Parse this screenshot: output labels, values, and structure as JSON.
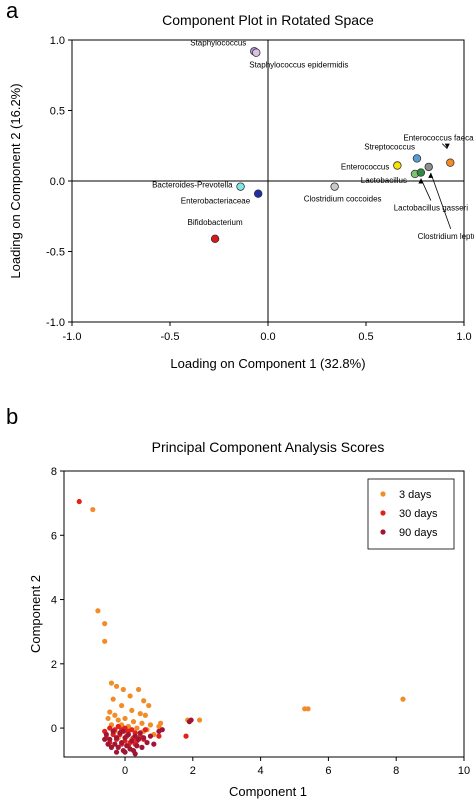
{
  "figure": {
    "panel_a_label": "a",
    "panel_b_label": "b"
  },
  "chart_data": [
    {
      "type": "scatter",
      "title": "Component Plot in Rotated Space",
      "xlabel": "Loading on Component 1 (32.8%)",
      "ylabel": "Loading on Component 2 (16.2%)",
      "xlim": [
        -1.0,
        1.0
      ],
      "ylim": [
        -1.0,
        1.0
      ],
      "xticks": [
        "-1.0",
        "-0.5",
        "0.0",
        "0.5",
        "1.0"
      ],
      "yticks": [
        "-1.0",
        "-0.5",
        "0.0",
        "0.5",
        "1.0"
      ],
      "grid": false,
      "reference_lines": [
        {
          "axis": "x",
          "value": 0
        },
        {
          "axis": "y",
          "value": 0
        }
      ],
      "points": [
        {
          "label": "Staphylococcus",
          "x": -0.07,
          "y": 0.92,
          "color": "#b39ddb"
        },
        {
          "label": "Staphylococcus epidermidis",
          "x": -0.06,
          "y": 0.91,
          "color": "#e1bee7"
        },
        {
          "label": "Enterococcus faecalis",
          "x": 0.93,
          "y": 0.13,
          "color": "#f28c28"
        },
        {
          "label": "Streptococcus",
          "x": 0.76,
          "y": 0.16,
          "color": "#5b9bd5"
        },
        {
          "label": "Enterococcus",
          "x": 0.66,
          "y": 0.11,
          "color": "#f7e400"
        },
        {
          "label": "Lactobacillus",
          "x": 0.75,
          "y": 0.05,
          "color": "#7cc576"
        },
        {
          "label": "Lactobacillus gasseri",
          "x": 0.78,
          "y": 0.06,
          "color": "#2e8b3a"
        },
        {
          "label": "Clostridium leptum",
          "x": 0.82,
          "y": 0.1,
          "color": "#8c8c8c"
        },
        {
          "label": "Clostridium coccoides",
          "x": 0.34,
          "y": -0.04,
          "color": "#c8c8c8"
        },
        {
          "label": "Bacteroides-Prevotella",
          "x": -0.14,
          "y": -0.04,
          "color": "#7fe8e8"
        },
        {
          "label": "Enterobacteriaceae",
          "x": -0.05,
          "y": -0.09,
          "color": "#1f2fa8"
        },
        {
          "label": "Bifidobacterium",
          "x": -0.27,
          "y": -0.41,
          "color": "#d7191c"
        }
      ]
    },
    {
      "type": "scatter",
      "title": "Principal Component Analysis Scores",
      "xlabel": "Component 1",
      "ylabel": "Component 2",
      "xlim": [
        -1.8,
        10
      ],
      "ylim": [
        -0.9,
        8
      ],
      "xticks": [
        0,
        2,
        4,
        6,
        8,
        10
      ],
      "yticks": [
        0,
        2,
        4,
        6,
        8
      ],
      "grid": false,
      "legend": "top-right",
      "series": [
        {
          "name": "3 days",
          "color": "#f28c28",
          "points": [
            [
              -0.95,
              6.8
            ],
            [
              -0.8,
              3.65
            ],
            [
              -0.6,
              3.25
            ],
            [
              -0.6,
              2.7
            ],
            [
              -0.4,
              1.4
            ],
            [
              -0.25,
              1.3
            ],
            [
              -0.05,
              1.2
            ],
            [
              0.15,
              1.0
            ],
            [
              0.4,
              1.2
            ],
            [
              -0.35,
              0.9
            ],
            [
              0.55,
              0.85
            ],
            [
              0.7,
              0.7
            ],
            [
              -0.1,
              0.7
            ],
            [
              -0.45,
              0.5
            ],
            [
              -0.3,
              0.4
            ],
            [
              0.2,
              0.55
            ],
            [
              0.45,
              0.45
            ],
            [
              0.6,
              0.4
            ],
            [
              -0.5,
              0.3
            ],
            [
              -0.2,
              0.25
            ],
            [
              0.0,
              0.3
            ],
            [
              0.25,
              0.2
            ],
            [
              0.5,
              0.15
            ],
            [
              0.75,
              0.1
            ],
            [
              -0.4,
              0.1
            ],
            [
              -0.1,
              0.1
            ],
            [
              0.1,
              0.05
            ],
            [
              0.35,
              0.0
            ],
            [
              0.65,
              -0.05
            ],
            [
              1.0,
              0.05
            ],
            [
              -0.3,
              -0.1
            ],
            [
              0.05,
              -0.1
            ],
            [
              0.3,
              -0.15
            ],
            [
              0.55,
              -0.1
            ],
            [
              0.85,
              -0.2
            ],
            [
              1.05,
              0.15
            ],
            [
              -0.2,
              -0.3
            ],
            [
              0.2,
              -0.35
            ],
            [
              1.85,
              0.25
            ],
            [
              2.2,
              0.25
            ],
            [
              5.3,
              0.6
            ],
            [
              5.4,
              0.6
            ],
            [
              8.2,
              0.9
            ]
          ]
        },
        {
          "name": "30 days",
          "color": "#e0221b",
          "points": [
            [
              -1.35,
              7.05
            ],
            [
              -0.6,
              -0.1
            ],
            [
              -0.45,
              0.0
            ],
            [
              -0.3,
              -0.05
            ],
            [
              -0.2,
              0.05
            ],
            [
              -0.1,
              -0.05
            ],
            [
              0.0,
              0.0
            ],
            [
              0.1,
              -0.1
            ],
            [
              0.2,
              -0.05
            ],
            [
              0.3,
              -0.15
            ],
            [
              -0.35,
              -0.2
            ],
            [
              -0.15,
              -0.2
            ],
            [
              0.05,
              -0.25
            ],
            [
              0.25,
              -0.3
            ],
            [
              0.45,
              -0.25
            ],
            [
              -0.25,
              -0.35
            ],
            [
              0.0,
              -0.4
            ],
            [
              0.15,
              -0.45
            ],
            [
              0.35,
              -0.4
            ],
            [
              0.55,
              -0.35
            ],
            [
              -0.45,
              -0.45
            ],
            [
              -0.1,
              -0.5
            ],
            [
              0.1,
              -0.55
            ],
            [
              0.3,
              -0.5
            ],
            [
              1.0,
              -0.25
            ],
            [
              1.8,
              -0.25
            ],
            [
              0.6,
              -0.05
            ],
            [
              -0.55,
              -0.3
            ]
          ]
        },
        {
          "name": "90 days",
          "color": "#a01535",
          "points": [
            [
              -0.55,
              -0.2
            ],
            [
              -0.45,
              -0.35
            ],
            [
              -0.35,
              -0.1
            ],
            [
              -0.3,
              -0.5
            ],
            [
              -0.25,
              -0.3
            ],
            [
              -0.2,
              -0.6
            ],
            [
              -0.15,
              -0.15
            ],
            [
              -0.1,
              -0.45
            ],
            [
              -0.05,
              -0.7
            ],
            [
              0.0,
              -0.3
            ],
            [
              0.05,
              -0.55
            ],
            [
              0.1,
              -0.2
            ],
            [
              0.15,
              -0.65
            ],
            [
              0.2,
              -0.4
            ],
            [
              0.25,
              -0.7
            ],
            [
              0.3,
              -0.25
            ],
            [
              0.35,
              -0.55
            ],
            [
              0.4,
              -0.35
            ],
            [
              0.5,
              -0.6
            ],
            [
              0.55,
              -0.3
            ],
            [
              0.65,
              -0.45
            ],
            [
              0.75,
              -0.25
            ],
            [
              0.85,
              -0.5
            ],
            [
              1.0,
              -0.1
            ],
            [
              -0.4,
              -0.6
            ],
            [
              -0.5,
              -0.5
            ],
            [
              -0.6,
              -0.35
            ],
            [
              0.45,
              -0.15
            ],
            [
              -0.05,
              -0.1
            ],
            [
              1.1,
              -0.05
            ],
            [
              1.9,
              0.2
            ],
            [
              1.95,
              0.25
            ],
            [
              0.0,
              -0.75
            ],
            [
              -0.25,
              -0.75
            ],
            [
              0.3,
              -0.8
            ]
          ]
        }
      ]
    }
  ]
}
